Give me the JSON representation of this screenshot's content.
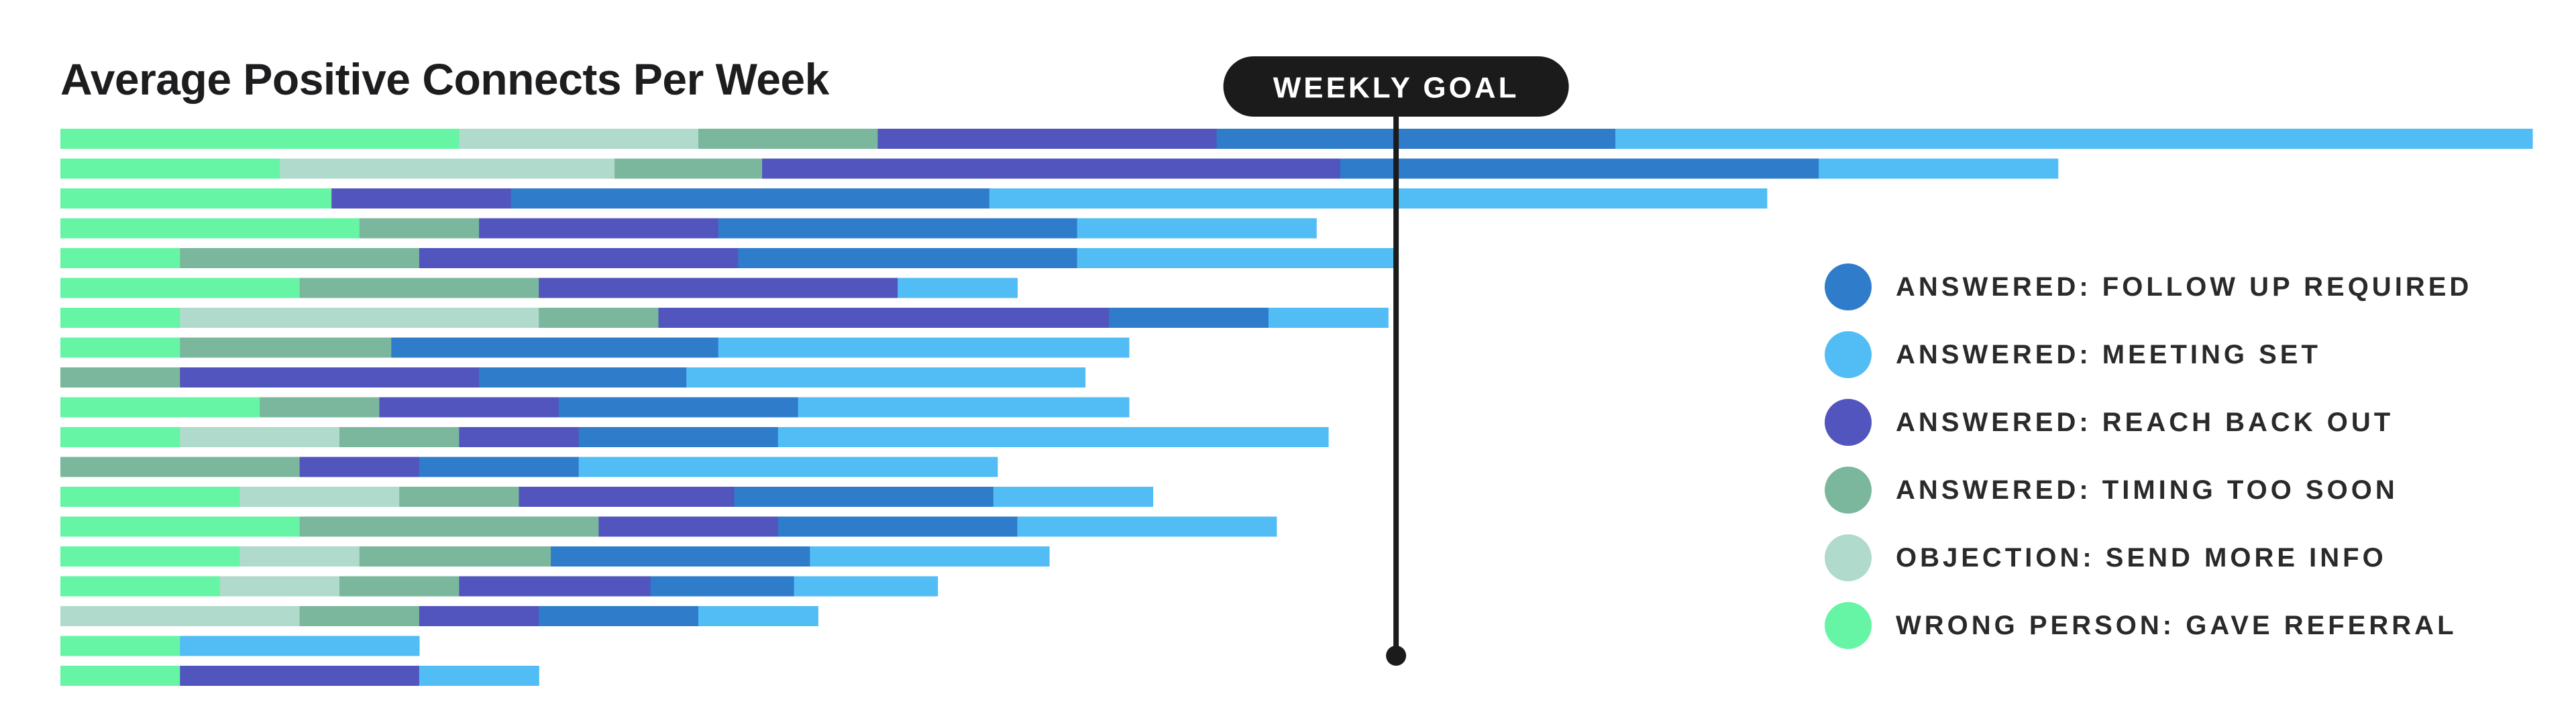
{
  "chart_data": {
    "type": "bar",
    "orientation": "horizontal",
    "stacked": true,
    "title": "Average Positive Connects Per Week",
    "xlabel": "",
    "ylabel": "",
    "grid": false,
    "legend_position": "right",
    "xlim": [
      0,
      62
    ],
    "goal": {
      "label": "WEEKLY GOAL",
      "value": 33.5
    },
    "series": [
      {
        "name": "WRONG PERSON: GAVE REFERRAL",
        "color": "#65F5A5",
        "values": [
          10,
          5.5,
          6.8,
          7.5,
          3,
          6,
          3,
          3,
          0,
          5,
          3,
          0,
          4.5,
          6,
          4.5,
          4,
          0,
          3,
          3
        ]
      },
      {
        "name": "OBJECTION: SEND MORE INFO",
        "color": "#B0DACB",
        "values": [
          6,
          8.4,
          0,
          0,
          0,
          0,
          9,
          0,
          0,
          0,
          4,
          0,
          4,
          0,
          3,
          3,
          6,
          0,
          0
        ]
      },
      {
        "name": "ANSWERED: TIMING TOO SOON",
        "color": "#7AB79D",
        "values": [
          4.5,
          3.7,
          0,
          3,
          6,
          6,
          3,
          5.3,
          3,
          3,
          3,
          6,
          3,
          7.5,
          4.8,
          3,
          3,
          0,
          0
        ]
      },
      {
        "name": "ANSWERED: REACH BACK OUT",
        "color": "#5255BD",
        "values": [
          8.5,
          14.5,
          4.5,
          6,
          8,
          9,
          11.3,
          0,
          7.5,
          4.5,
          3,
          3,
          5.4,
          4.5,
          0,
          4.8,
          3,
          0,
          6
        ]
      },
      {
        "name": "ANSWERED: FOLLOW UP REQUIRED",
        "color": "#2F7CCB",
        "values": [
          10,
          12,
          12,
          9,
          8.5,
          0,
          4,
          8.2,
          5.2,
          6,
          5,
          4,
          6.5,
          6,
          6.5,
          3.6,
          4,
          0,
          0
        ]
      },
      {
        "name": "ANSWERED: MEETING SET",
        "color": "#52BDF5",
        "values": [
          23,
          6,
          19.5,
          6,
          8,
          3,
          3,
          10.3,
          10,
          8.3,
          13.8,
          10.5,
          4,
          6.5,
          6,
          3.6,
          3,
          6,
          3
        ]
      }
    ]
  },
  "legend": {
    "items": [
      {
        "label": "ANSWERED: FOLLOW UP REQUIRED",
        "color": "#2F7CCB"
      },
      {
        "label": "ANSWERED: MEETING SET",
        "color": "#52BDF5"
      },
      {
        "label": "ANSWERED: REACH BACK OUT",
        "color": "#5255BD"
      },
      {
        "label": "ANSWERED: TIMING TOO SOON",
        "color": "#7AB79D"
      },
      {
        "label": "OBJECTION: SEND MORE INFO",
        "color": "#B0DACB"
      },
      {
        "label": "WRONG PERSON: GAVE REFERRAL",
        "color": "#65F5A5"
      }
    ]
  }
}
